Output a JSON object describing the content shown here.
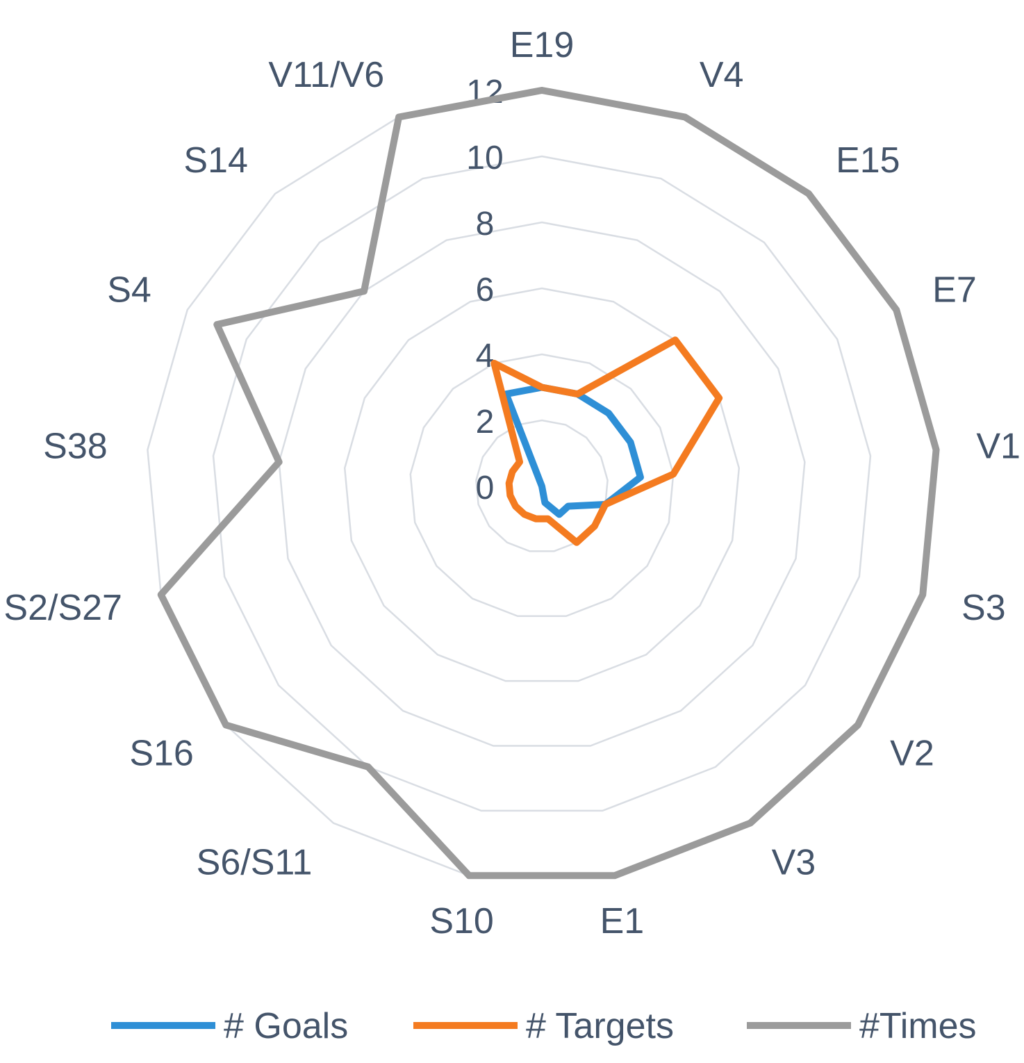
{
  "chart_data": {
    "type": "radar",
    "categories": [
      "E19",
      "V4",
      "E15",
      "E7",
      "V1",
      "S3",
      "V2",
      "V3",
      "E1",
      "S10",
      "S6/S11",
      "S16",
      "S2/S27",
      "S38",
      "S4",
      "S14",
      "V11/V6"
    ],
    "rlim": [
      0,
      12
    ],
    "ticks": [
      "0",
      "2",
      "4",
      "6",
      "8",
      "10",
      "12"
    ],
    "grid": true,
    "legend_position": "bottom",
    "series": [
      {
        "name": "# Goals",
        "color": "#2e8fd6",
        "values": [
          3,
          3,
          3,
          3,
          3,
          2,
          1,
          1,
          0.5,
          0,
          0,
          0,
          0,
          0,
          0,
          0,
          3
        ]
      },
      {
        "name": "# Targets",
        "color": "#f47b20",
        "values": [
          3,
          3,
          6,
          6,
          4,
          2,
          2,
          2,
          1,
          1,
          1,
          1,
          1,
          1,
          1,
          1,
          4
        ]
      },
      {
        "name": "#Times",
        "color": "#9b9b9b",
        "values": [
          12,
          12,
          12,
          12,
          12,
          12,
          12,
          12,
          12,
          12,
          10,
          12,
          12,
          8,
          11,
          8,
          12
        ]
      }
    ]
  }
}
